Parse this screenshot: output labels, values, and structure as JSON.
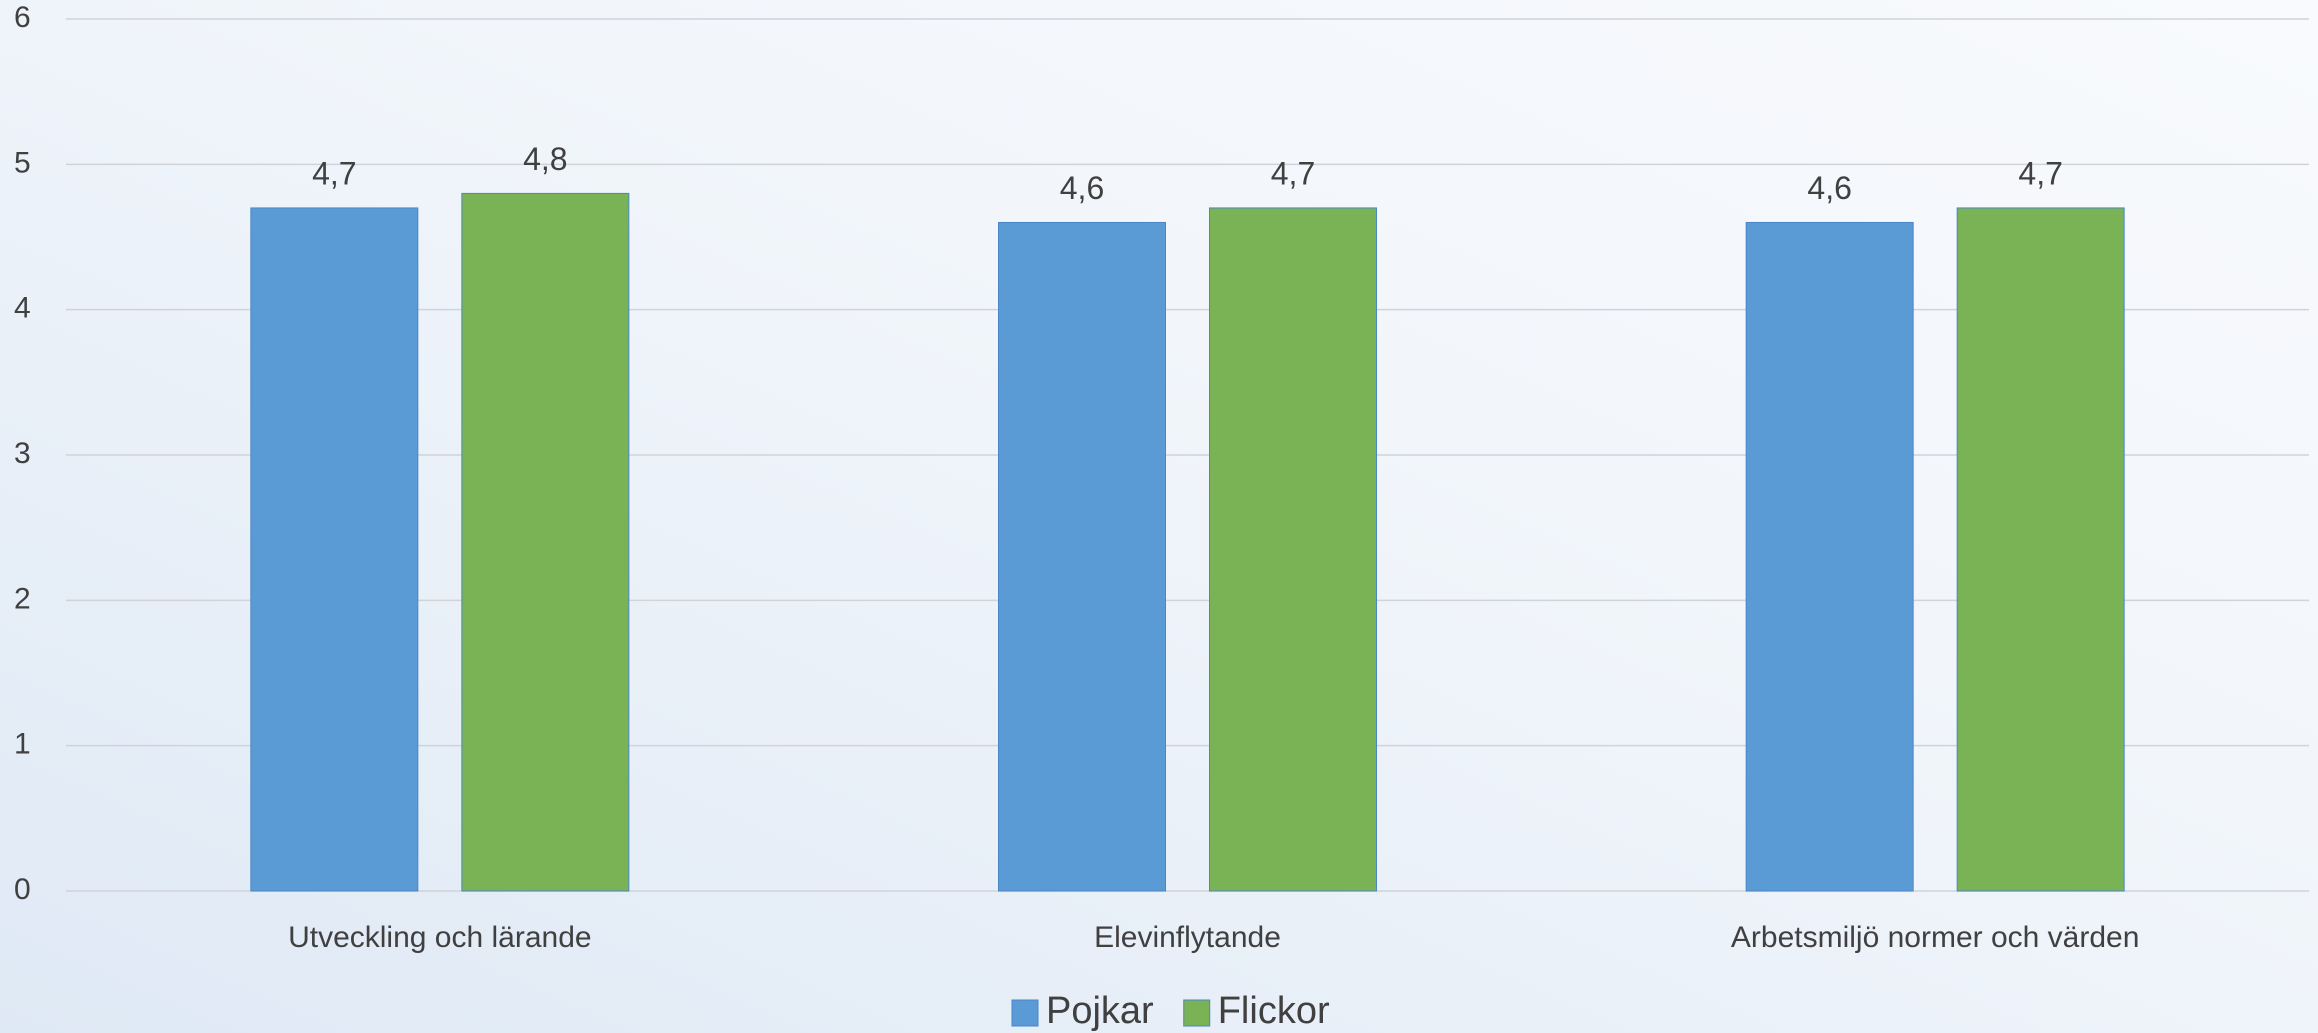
{
  "chart_data": {
    "type": "bar",
    "categories": [
      "Utveckling och lärande",
      "Elevinflytande",
      "Arbetsmiljö normer och värden"
    ],
    "series": [
      {
        "name": "Pojkar",
        "color": "#5b9bd5",
        "values": [
          4.7,
          4.6,
          4.6
        ],
        "value_labels": [
          "4,7",
          "4,6",
          "4,6"
        ]
      },
      {
        "name": "Flickor",
        "color": "#7ab355",
        "values": [
          4.8,
          4.7,
          4.7
        ],
        "value_labels": [
          "4,8",
          "4,7",
          "4,7"
        ]
      }
    ],
    "ylim": [
      0,
      6
    ],
    "yticks": [
      0,
      1,
      2,
      3,
      4,
      5,
      6
    ],
    "grid": true,
    "legend": "bottom"
  }
}
